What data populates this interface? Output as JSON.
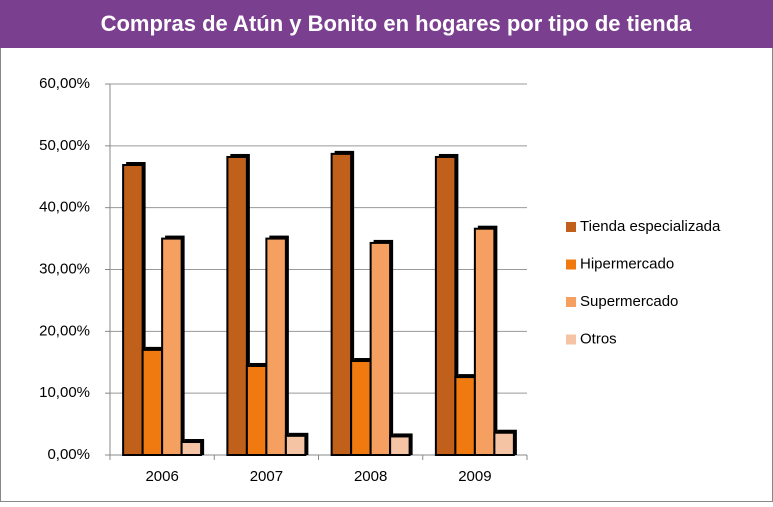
{
  "chart_data": {
    "type": "bar",
    "title": "Compras de Atún y Bonito en hogares por tipo de tienda",
    "categories": [
      "2006",
      "2007",
      "2008",
      "2009"
    ],
    "series": [
      {
        "name": "Tienda especializada",
        "color": "#c0601a",
        "values": [
          46.9,
          48.2,
          48.7,
          48.2
        ]
      },
      {
        "name": "Hipermercado",
        "color": "#f07a10",
        "values": [
          17.0,
          14.4,
          15.2,
          12.6
        ]
      },
      {
        "name": "Supermercado",
        "color": "#f5a060",
        "values": [
          35.0,
          35.0,
          34.3,
          36.6
        ]
      },
      {
        "name": "Otros",
        "color": "#f5c4a4",
        "values": [
          2.1,
          3.1,
          3.0,
          3.6
        ]
      }
    ],
    "ylim": [
      0,
      60
    ],
    "yticks": [
      {
        "value": 0,
        "label": "0,00%"
      },
      {
        "value": 10,
        "label": "10,00%"
      },
      {
        "value": 20,
        "label": "20,00%"
      },
      {
        "value": 30,
        "label": "30,00%"
      },
      {
        "value": 40,
        "label": "40,00%"
      },
      {
        "value": 50,
        "label": "50,00%"
      },
      {
        "value": 60,
        "label": "60,00%"
      }
    ],
    "grid": true,
    "legend": "right"
  }
}
